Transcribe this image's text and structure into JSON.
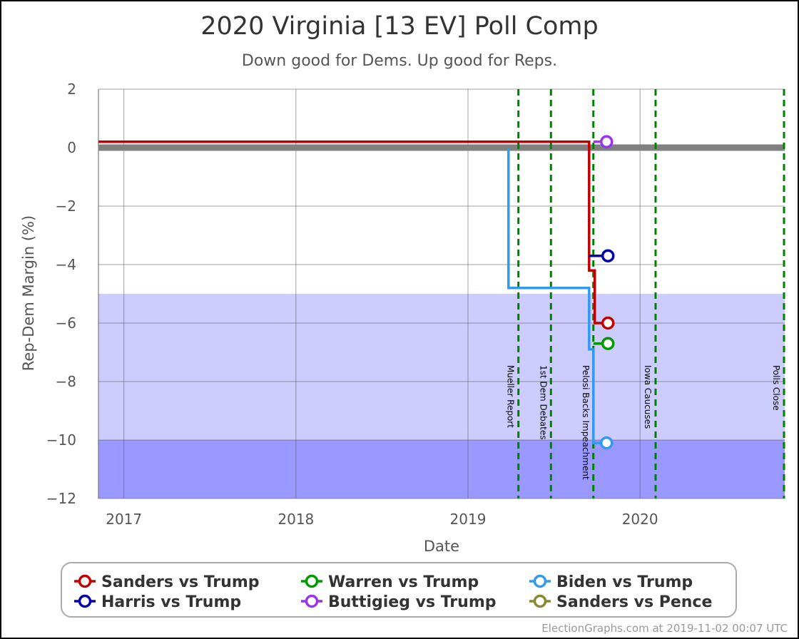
{
  "chart_data": {
    "type": "line",
    "title": "2020 Virginia [13 EV] Poll Comp",
    "subtitle": "Down good for Dems. Up good for Reps.",
    "xlabel": "Date",
    "ylabel": "Rep-Dem Margin (%)",
    "xlim": [
      "2016-11-08",
      "2020-11-03"
    ],
    "ylim": [
      -12,
      2
    ],
    "y_ticks": [
      2,
      0,
      -2,
      -4,
      -6,
      -8,
      -10,
      -12
    ],
    "x_ticks": [
      {
        "label": "2017",
        "date": "2017-01-01"
      },
      {
        "label": "2018",
        "date": "2018-01-01"
      },
      {
        "label": "2019",
        "date": "2019-01-01"
      },
      {
        "label": "2020",
        "date": "2020-01-01"
      }
    ],
    "grid": true,
    "bands": [
      {
        "from": -5,
        "to": -10,
        "color": "#ccccff"
      },
      {
        "from": -10,
        "to": -12,
        "color": "#9999ff"
      }
    ],
    "zero_line_color": "#808080",
    "events": [
      {
        "label": "Mueller Report",
        "date": "2019-04-18"
      },
      {
        "label": "1st Dem Debates",
        "date": "2019-06-26"
      },
      {
        "label": "Pelosi Backs Impeachment",
        "date": "2019-09-24"
      },
      {
        "label": "Iowa Caucuses",
        "date": "2020-02-03"
      },
      {
        "label": "Polls Close",
        "date": "2020-11-03"
      }
    ],
    "event_color": "#008000",
    "series": [
      {
        "name": "Sanders vs Trump",
        "color": "#c00000",
        "points": [
          {
            "x": "2016-11-08",
            "y": 0.2
          },
          {
            "x": "2019-09-15",
            "y": 0.2
          },
          {
            "x": "2019-09-15",
            "y": -4.2
          },
          {
            "x": "2019-09-27",
            "y": -4.2
          },
          {
            "x": "2019-09-27",
            "y": -6.0
          },
          {
            "x": "2019-10-25",
            "y": -6.0
          }
        ]
      },
      {
        "name": "Warren vs Trump",
        "color": "#009900",
        "points": [
          {
            "x": "2019-09-24",
            "y": -6.7
          },
          {
            "x": "2019-10-25",
            "y": -6.7
          }
        ]
      },
      {
        "name": "Biden vs Trump",
        "color": "#3399ee",
        "points": [
          {
            "x": "2019-03-28",
            "y": 0.0
          },
          {
            "x": "2019-03-28",
            "y": -4.8
          },
          {
            "x": "2019-09-15",
            "y": -4.8
          },
          {
            "x": "2019-09-15",
            "y": -6.9
          },
          {
            "x": "2019-09-24",
            "y": -6.9
          },
          {
            "x": "2019-09-24",
            "y": -10.1
          },
          {
            "x": "2019-10-22",
            "y": -10.1
          }
        ]
      },
      {
        "name": "Harris vs Trump",
        "color": "#0000aa",
        "points": [
          {
            "x": "2019-09-15",
            "y": -3.7
          },
          {
            "x": "2019-10-25",
            "y": -3.7
          }
        ]
      },
      {
        "name": "Buttigieg vs Trump",
        "color": "#9933ee",
        "points": [
          {
            "x": "2019-09-24",
            "y": 0.2
          },
          {
            "x": "2019-10-22",
            "y": 0.2
          }
        ]
      },
      {
        "name": "Sanders vs Pence",
        "color": "#888833",
        "points": []
      }
    ],
    "legend": {
      "position": "bottom"
    },
    "credit": "ElectionGraphs.com at 2019-11-02 00:07 UTC"
  }
}
